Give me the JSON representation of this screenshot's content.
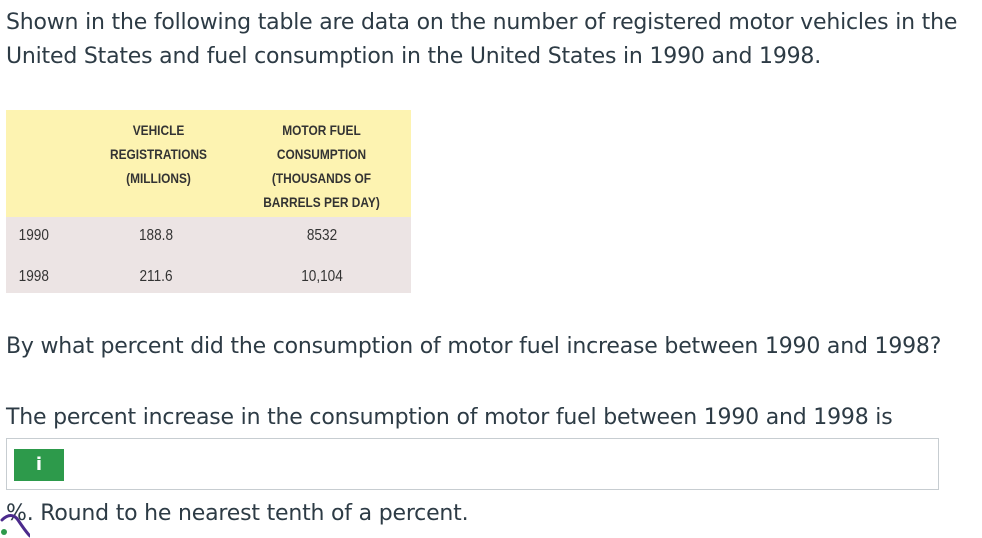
{
  "problem": {
    "intro": "Shown in the following table are data on the number of registered motor vehicles in the United States and fuel consumption in the United States in 1990 and 1998.",
    "table": {
      "headers": {
        "registrations": "VEHICLE\nREGISTRATIONS\n(MILLIONS)",
        "fuel": "MOTOR FUEL\nCONSUMPTION\n(THOUSANDS OF\nBARRELS PER DAY)"
      },
      "rows": [
        {
          "year": "1990",
          "registrations": "188.8",
          "fuel": "8532"
        },
        {
          "year": "1998",
          "registrations": "211.6",
          "fuel": "10,104"
        }
      ]
    },
    "question": "By what percent did the consumption of motor fuel increase between 1990 and 1998?",
    "prompt": "The percent increase in the consumption of motor fuel between 1990 and 1998 is",
    "answer": {
      "badge": "i",
      "value": "",
      "placeholder": ""
    },
    "round_note": "%. Round to he nearest tenth of a percent."
  },
  "colors": {
    "header_bg": "#fdf3b1",
    "body_bg": "#ece4e4",
    "badge_bg": "#2d9a4b",
    "text": "#2d3b45"
  }
}
